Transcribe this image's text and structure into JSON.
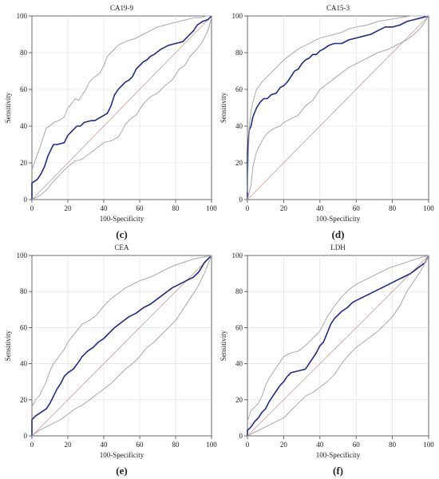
{
  "chart_data": [
    {
      "panel_label": "(c)",
      "type": "line",
      "title": "CA19-9",
      "xlabel": "100-Specificity",
      "ylabel": "Sensitivity",
      "xlim": [
        0,
        100
      ],
      "ylim": [
        0,
        100
      ],
      "xticks": [
        0,
        20,
        40,
        60,
        80,
        100
      ],
      "yticks": [
        0,
        20,
        40,
        60,
        80,
        100
      ],
      "grid": true,
      "series": [
        {
          "role": "reference",
          "color": "#c89a9a",
          "x": [
            0,
            100
          ],
          "y": [
            0,
            100
          ]
        },
        {
          "role": "roc",
          "color": "#1f2a8c",
          "x": [
            0,
            0,
            3,
            5,
            7,
            9,
            12,
            14,
            18,
            20,
            22,
            25,
            27,
            29,
            33,
            35,
            42,
            44,
            46,
            48,
            50,
            52,
            54,
            56,
            58,
            60,
            62,
            64,
            66,
            68,
            72,
            76,
            80,
            84,
            86,
            88,
            90,
            92,
            95,
            98,
            100
          ],
          "y": [
            0,
            9,
            11,
            14,
            18,
            24,
            30,
            30,
            31,
            35,
            37,
            40,
            40,
            42,
            43,
            43,
            47,
            51,
            57,
            60,
            62,
            64,
            65,
            67,
            71,
            73,
            75,
            76,
            78,
            79,
            82,
            84,
            85,
            86,
            88,
            90,
            92,
            95,
            97,
            98,
            100
          ]
        },
        {
          "role": "ci-upper",
          "color": "#a8a8a8",
          "x": [
            0,
            2,
            4,
            6,
            8,
            10,
            12,
            15,
            18,
            20,
            22,
            24,
            26,
            28,
            30,
            32,
            34,
            38,
            40,
            42,
            44,
            46,
            48,
            50,
            52,
            55,
            58,
            60,
            62,
            66,
            70,
            74,
            78,
            82,
            86,
            90,
            94,
            97,
            100
          ],
          "y": [
            16,
            22,
            27,
            33,
            39,
            40,
            42,
            43,
            45,
            50,
            52,
            55,
            54,
            57,
            60,
            64,
            66,
            69,
            73,
            78,
            80,
            82,
            84,
            85,
            86,
            87,
            88,
            89,
            90,
            92,
            94,
            95,
            96,
            97,
            98,
            99,
            99,
            100,
            100
          ]
        },
        {
          "role": "ci-lower",
          "color": "#a8a8a8",
          "x": [
            0,
            4,
            8,
            12,
            16,
            20,
            24,
            28,
            32,
            36,
            40,
            44,
            48,
            50,
            52,
            55,
            58,
            60,
            62,
            66,
            70,
            74,
            78,
            80,
            82,
            85,
            88,
            92,
            95,
            98,
            100
          ],
          "y": [
            0,
            2,
            5,
            10,
            14,
            18,
            21,
            22,
            25,
            28,
            31,
            32,
            34,
            37,
            41,
            44,
            46,
            49,
            52,
            56,
            58,
            62,
            65,
            68,
            71,
            73,
            78,
            82,
            86,
            92,
            99
          ]
        }
      ]
    },
    {
      "panel_label": "(d)",
      "type": "line",
      "title": "CA15-3",
      "xlabel": "100-Specificity",
      "ylabel": "Sensitivity",
      "xlim": [
        0,
        100
      ],
      "ylim": [
        0,
        100
      ],
      "xticks": [
        0,
        20,
        40,
        60,
        80,
        100
      ],
      "yticks": [
        0,
        20,
        40,
        60,
        80,
        100
      ],
      "grid": true,
      "series": [
        {
          "role": "reference",
          "color": "#c89a9a",
          "x": [
            0,
            100
          ],
          "y": [
            0,
            100
          ]
        },
        {
          "role": "roc",
          "color": "#1f2a8c",
          "x": [
            0,
            0,
            1,
            2,
            3,
            5,
            7,
            9,
            11,
            13,
            16,
            18,
            20,
            22,
            24,
            26,
            28,
            30,
            32,
            34,
            36,
            38,
            40,
            42,
            45,
            48,
            52,
            56,
            60,
            64,
            68,
            72,
            76,
            80,
            84,
            88,
            92,
            96,
            100
          ],
          "y": [
            0,
            26,
            38,
            40,
            45,
            50,
            53,
            55,
            55,
            57,
            58,
            61,
            62,
            64,
            67,
            70,
            71,
            74,
            76,
            77,
            79,
            79,
            81,
            82,
            84,
            85,
            85,
            87,
            88,
            89,
            90,
            92,
            94,
            94,
            95,
            97,
            98,
            99,
            100
          ]
        },
        {
          "role": "ci-upper",
          "color": "#a8a8a8",
          "x": [
            0,
            1,
            2,
            3,
            5,
            8,
            10,
            12,
            15,
            18,
            20,
            24,
            28,
            32,
            36,
            40,
            44,
            48,
            52,
            56,
            60,
            66,
            72,
            78,
            84,
            90,
            95,
            100
          ],
          "y": [
            4,
            40,
            48,
            53,
            60,
            64,
            66,
            68,
            71,
            74,
            76,
            79,
            82,
            84,
            86,
            88,
            89,
            90,
            91,
            93,
            94,
            95,
            97,
            98,
            99,
            100,
            100,
            100
          ]
        },
        {
          "role": "ci-lower",
          "color": "#a8a8a8",
          "x": [
            0,
            2,
            3,
            5,
            8,
            10,
            12,
            15,
            18,
            20,
            24,
            28,
            32,
            36,
            40,
            44,
            48,
            52,
            56,
            60,
            66,
            72,
            78,
            84,
            88,
            92,
            96,
            100
          ],
          "y": [
            0,
            8,
            18,
            26,
            32,
            35,
            37,
            39,
            40,
            42,
            44,
            46,
            51,
            54,
            60,
            63,
            66,
            69,
            72,
            74,
            77,
            80,
            82,
            85,
            87,
            90,
            94,
            100
          ]
        }
      ]
    },
    {
      "panel_label": "(e)",
      "type": "line",
      "title": "CEA",
      "xlabel": "100-Specificity",
      "ylabel": "Sensitivity",
      "xlim": [
        0,
        100
      ],
      "ylim": [
        0,
        100
      ],
      "xticks": [
        0,
        20,
        40,
        60,
        80,
        100
      ],
      "yticks": [
        0,
        20,
        40,
        60,
        80,
        100
      ],
      "grid": true,
      "series": [
        {
          "role": "reference",
          "color": "#c89a9a",
          "x": [
            0,
            100
          ],
          "y": [
            0,
            100
          ]
        },
        {
          "role": "roc",
          "color": "#1f2a8c",
          "x": [
            0,
            0,
            2,
            5,
            8,
            10,
            12,
            14,
            16,
            18,
            20,
            23,
            26,
            28,
            31,
            34,
            37,
            40,
            43,
            46,
            50,
            54,
            58,
            62,
            66,
            70,
            74,
            78,
            82,
            86,
            90,
            93,
            96,
            100
          ],
          "y": [
            0,
            9,
            11,
            13,
            15,
            18,
            22,
            26,
            29,
            33,
            35,
            37,
            41,
            44,
            47,
            49,
            52,
            54,
            57,
            60,
            63,
            66,
            68,
            71,
            73,
            76,
            79,
            82,
            84,
            86,
            88,
            91,
            96,
            100
          ]
        },
        {
          "role": "ci-upper",
          "color": "#a8a8a8",
          "x": [
            0,
            2,
            4,
            6,
            8,
            10,
            12,
            15,
            18,
            20,
            24,
            28,
            32,
            36,
            40,
            44,
            48,
            52,
            56,
            60,
            66,
            72,
            78,
            84,
            90,
            95,
            100
          ],
          "y": [
            16,
            20,
            22,
            26,
            30,
            36,
            40,
            44,
            48,
            52,
            57,
            62,
            64,
            67,
            72,
            76,
            79,
            82,
            84,
            86,
            88,
            91,
            94,
            96,
            98,
            99,
            100
          ]
        },
        {
          "role": "ci-lower",
          "color": "#a8a8a8",
          "x": [
            0,
            4,
            8,
            12,
            16,
            20,
            24,
            28,
            32,
            36,
            40,
            44,
            48,
            52,
            56,
            60,
            64,
            68,
            72,
            76,
            80,
            84,
            88,
            92,
            96,
            100
          ],
          "y": [
            0,
            3,
            5,
            7,
            9,
            12,
            15,
            17,
            20,
            23,
            26,
            29,
            33,
            37,
            40,
            44,
            49,
            52,
            56,
            60,
            64,
            70,
            76,
            82,
            90,
            100
          ]
        }
      ]
    },
    {
      "panel_label": "(f)",
      "type": "line",
      "title": "LDH",
      "xlabel": "100-Specificity",
      "ylabel": "Sensitivity",
      "xlim": [
        0,
        100
      ],
      "ylim": [
        0,
        100
      ],
      "xticks": [
        0,
        20,
        40,
        60,
        80,
        100
      ],
      "yticks": [
        0,
        20,
        40,
        60,
        80,
        100
      ],
      "grid": true,
      "series": [
        {
          "role": "reference",
          "color": "#c89a9a",
          "x": [
            0,
            100
          ],
          "y": [
            0,
            100
          ]
        },
        {
          "role": "roc",
          "color": "#1f2a8c",
          "x": [
            0,
            0,
            2,
            4,
            6,
            8,
            10,
            12,
            14,
            16,
            18,
            20,
            22,
            24,
            28,
            32,
            34,
            36,
            38,
            40,
            42,
            44,
            46,
            48,
            50,
            52,
            55,
            58,
            62,
            66,
            70,
            74,
            78,
            82,
            86,
            90,
            94,
            98,
            100
          ],
          "y": [
            0,
            3,
            5,
            8,
            10,
            13,
            15,
            19,
            22,
            25,
            28,
            30,
            33,
            35,
            36,
            37,
            40,
            43,
            46,
            50,
            52,
            57,
            62,
            65,
            67,
            69,
            71,
            74,
            76,
            78,
            80,
            82,
            84,
            86,
            88,
            90,
            93,
            96,
            100
          ]
        },
        {
          "role": "ci-upper",
          "color": "#a8a8a8",
          "x": [
            0,
            2,
            4,
            6,
            8,
            10,
            12,
            14,
            16,
            18,
            20,
            24,
            28,
            32,
            36,
            40,
            44,
            48,
            52,
            56,
            60,
            66,
            72,
            78,
            84,
            90,
            96,
            100
          ],
          "y": [
            8,
            14,
            16,
            18,
            22,
            28,
            32,
            35,
            38,
            41,
            44,
            46,
            47,
            50,
            54,
            58,
            66,
            72,
            77,
            81,
            84,
            87,
            90,
            93,
            95,
            97,
            99,
            100
          ]
        },
        {
          "role": "ci-lower",
          "color": "#a8a8a8",
          "x": [
            0,
            4,
            8,
            12,
            16,
            20,
            24,
            28,
            32,
            36,
            40,
            44,
            48,
            52,
            56,
            60,
            64,
            68,
            72,
            76,
            80,
            84,
            88,
            92,
            96,
            100
          ],
          "y": [
            0,
            2,
            4,
            6,
            8,
            10,
            14,
            18,
            22,
            24,
            27,
            30,
            34,
            40,
            45,
            49,
            52,
            55,
            58,
            62,
            66,
            72,
            80,
            86,
            92,
            100
          ]
        }
      ]
    }
  ]
}
